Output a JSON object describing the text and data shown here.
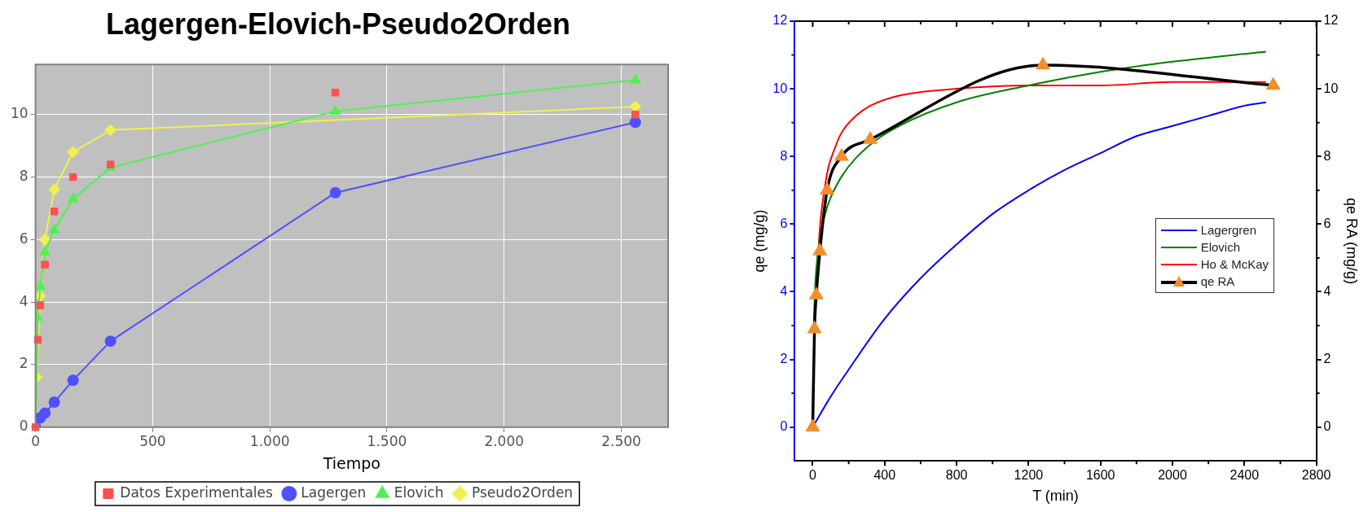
{
  "chart_data": [
    {
      "type": "line",
      "title": "Lagergen-Elovich-Pseudo2Orden",
      "xlabel": "Tiempo",
      "xlim": [
        0,
        2700
      ],
      "xticks": [
        0,
        500,
        {
          "value": 1000,
          "label": "1.000"
        },
        {
          "value": 1500,
          "label": "1.500"
        },
        {
          "value": 2000,
          "label": "2.000"
        },
        {
          "value": 2500,
          "label": "2.500"
        }
      ],
      "ylim": [
        0,
        11.6
      ],
      "yticks": [
        0,
        2,
        4,
        6,
        8,
        10
      ],
      "grid": true,
      "legend": "bottom",
      "series": [
        {
          "name": "Datos Experimentales",
          "type": "scatter",
          "marker": "square",
          "color": "#ff5050",
          "x": [
            0,
            10,
            20,
            40,
            80,
            160,
            320,
            1280,
            2560
          ],
          "values": [
            0,
            2.8,
            3.9,
            5.2,
            6.9,
            8.0,
            8.4,
            10.7,
            10.0
          ]
        },
        {
          "name": "Lagergen",
          "marker": "circle",
          "color": "#5050ff",
          "x": [
            0,
            10,
            20,
            40,
            80,
            160,
            320,
            1280,
            2560
          ],
          "values": [
            0,
            null,
            0.3,
            0.45,
            0.8,
            1.5,
            2.75,
            7.5,
            9.75
          ]
        },
        {
          "name": "Elovich",
          "marker": "triangle",
          "color": "#50f050",
          "x": [
            0,
            10,
            20,
            40,
            80,
            160,
            320,
            1280,
            2560
          ],
          "values": [
            0,
            3.5,
            4.5,
            5.6,
            6.3,
            7.3,
            8.3,
            10.1,
            11.1
          ]
        },
        {
          "name": "Pseudo2Orden",
          "marker": "diamond",
          "color": "#f0f050",
          "x": [
            5,
            20,
            40,
            80,
            160,
            320,
            1280,
            2560
          ],
          "values": [
            1.6,
            4.2,
            6.0,
            7.6,
            8.8,
            9.5,
            null,
            10.25
          ]
        }
      ]
    },
    {
      "type": "line",
      "xlabel": "T (min)",
      "ylabel": "qe (mg/g)",
      "y2label": "qe RA (mg/g)",
      "xlim": [
        -100,
        2800
      ],
      "xticks": [
        0,
        400,
        800,
        1200,
        1600,
        2000,
        2400,
        2800
      ],
      "ylim": [
        -1,
        12
      ],
      "yticks": [
        0,
        2,
        4,
        6,
        8,
        10,
        12
      ],
      "y2lim": [
        -1,
        12
      ],
      "y2ticks": [
        0,
        2,
        4,
        6,
        8,
        10,
        12
      ],
      "legend": "right",
      "series": [
        {
          "name": "Lagergren",
          "color": "#0000ff",
          "x": [
            0,
            100,
            200,
            400,
            600,
            800,
            1000,
            1200,
            1400,
            1600,
            1800,
            2000,
            2200,
            2400,
            2520
          ],
          "values": [
            0,
            0.9,
            1.7,
            3.2,
            4.4,
            5.4,
            6.3,
            7.0,
            7.6,
            8.1,
            8.6,
            8.9,
            9.2,
            9.5,
            9.6
          ]
        },
        {
          "name": "Elovich",
          "color": "#008000",
          "x": [
            5,
            10,
            20,
            40,
            80,
            160,
            320,
            480,
            800,
            1200,
            1600,
            2000,
            2520
          ],
          "values": [
            2.8,
            3.7,
            4.7,
            5.6,
            6.5,
            7.4,
            8.35,
            8.9,
            9.6,
            10.1,
            10.5,
            10.8,
            11.1
          ]
        },
        {
          "name": "Ho & McKay",
          "color": "#ff0000",
          "x": [
            20,
            40,
            80,
            120,
            160,
            240,
            320,
            480,
            800,
            1200,
            1600,
            2000,
            2520
          ],
          "values": [
            4.1,
            5.9,
            7.5,
            8.2,
            8.7,
            9.2,
            9.5,
            9.8,
            10.0,
            10.1,
            10.1,
            10.2,
            10.2
          ]
        },
        {
          "name": "qe RA",
          "axis": "y2",
          "marker": "triangle",
          "color": "#000000",
          "colors": [
            "#f28e2b",
            "#f28e2b",
            "#f28e2b",
            "#f28e2b",
            "#f28e2b",
            "#f28e2b",
            "#f28e2b",
            "#f28e2b",
            "#f28e2b"
          ],
          "x": [
            0,
            10,
            20,
            40,
            80,
            160,
            320,
            1280,
            2560
          ],
          "values": [
            0,
            2.9,
            3.9,
            5.2,
            7.0,
            8.0,
            8.5,
            10.7,
            10.1
          ]
        }
      ]
    }
  ]
}
